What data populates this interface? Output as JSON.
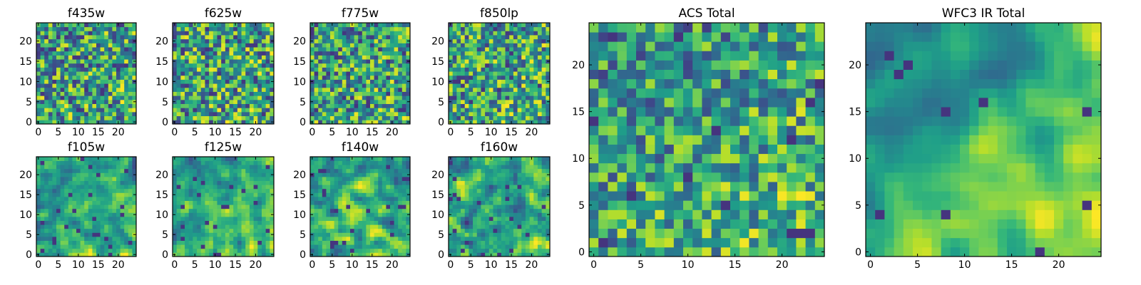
{
  "chart_data": [
    {
      "type": "heatmap",
      "title": "f435w",
      "grid_size": 25,
      "colormap": "viridis",
      "seed": 11,
      "smooth": 0,
      "gradient": 0.05,
      "xticks": [
        0,
        5,
        10,
        15,
        20
      ],
      "yticks": [
        0,
        5,
        10,
        15,
        20
      ],
      "xlim": [
        0,
        24
      ],
      "ylim": [
        0,
        24
      ]
    },
    {
      "type": "heatmap",
      "title": "f625w",
      "grid_size": 25,
      "colormap": "viridis",
      "seed": 23,
      "smooth": 0,
      "gradient": 0.05,
      "xticks": [
        0,
        5,
        10,
        15,
        20
      ],
      "yticks": [
        0,
        5,
        10,
        15,
        20
      ],
      "xlim": [
        0,
        24
      ],
      "ylim": [
        0,
        24
      ]
    },
    {
      "type": "heatmap",
      "title": "f775w",
      "grid_size": 25,
      "colormap": "viridis",
      "seed": 37,
      "smooth": 0,
      "gradient": 0.1,
      "xticks": [
        0,
        5,
        10,
        15,
        20
      ],
      "yticks": [
        0,
        5,
        10,
        15,
        20
      ],
      "xlim": [
        0,
        24
      ],
      "ylim": [
        0,
        24
      ]
    },
    {
      "type": "heatmap",
      "title": "f850lp",
      "grid_size": 25,
      "colormap": "viridis",
      "seed": 41,
      "smooth": 0,
      "gradient": 0.1,
      "xticks": [
        0,
        5,
        10,
        15,
        20
      ],
      "yticks": [
        0,
        5,
        10,
        15,
        20
      ],
      "xlim": [
        0,
        24
      ],
      "ylim": [
        0,
        24
      ]
    },
    {
      "type": "heatmap",
      "title": "f105w",
      "grid_size": 25,
      "colormap": "viridis",
      "seed": 53,
      "smooth": 1,
      "gradient": 0.2,
      "xticks": [
        0,
        5,
        10,
        15,
        20
      ],
      "yticks": [
        0,
        5,
        10,
        15,
        20
      ],
      "xlim": [
        0,
        24
      ],
      "ylim": [
        0,
        24
      ]
    },
    {
      "type": "heatmap",
      "title": "f125w",
      "grid_size": 25,
      "colormap": "viridis",
      "seed": 67,
      "smooth": 1,
      "gradient": 0.3,
      "xticks": [
        0,
        5,
        10,
        15,
        20
      ],
      "yticks": [
        0,
        5,
        10,
        15,
        20
      ],
      "xlim": [
        0,
        24
      ],
      "ylim": [
        0,
        24
      ]
    },
    {
      "type": "heatmap",
      "title": "f140w",
      "grid_size": 25,
      "colormap": "viridis",
      "seed": 71,
      "smooth": 1,
      "gradient": 0.2,
      "xticks": [
        0,
        5,
        10,
        15,
        20
      ],
      "yticks": [
        0,
        5,
        10,
        15,
        20
      ],
      "xlim": [
        0,
        24
      ],
      "ylim": [
        0,
        24
      ]
    },
    {
      "type": "heatmap",
      "title": "f160w",
      "grid_size": 25,
      "colormap": "viridis",
      "seed": 83,
      "smooth": 1,
      "gradient": 0.2,
      "xticks": [
        0,
        5,
        10,
        15,
        20
      ],
      "yticks": [
        0,
        5,
        10,
        15,
        20
      ],
      "xlim": [
        0,
        24
      ],
      "ylim": [
        0,
        24
      ]
    },
    {
      "type": "heatmap",
      "title": "ACS Total",
      "grid_size": 25,
      "colormap": "viridis",
      "seed": 97,
      "smooth": 0,
      "gradient": 0.25,
      "xticks": [
        0,
        5,
        10,
        15,
        20
      ],
      "yticks": [
        0,
        5,
        10,
        15,
        20
      ],
      "xlim": [
        0,
        24
      ],
      "ylim": [
        0,
        24
      ]
    },
    {
      "type": "heatmap",
      "title": "WFC3 IR Total",
      "grid_size": 25,
      "colormap": "viridis",
      "seed": 101,
      "smooth": 2,
      "gradient": 0.5,
      "xticks": [
        0,
        5,
        10,
        15,
        20
      ],
      "yticks": [
        0,
        5,
        10,
        15,
        20
      ],
      "xlim": [
        0,
        24
      ],
      "ylim": [
        0,
        24
      ]
    }
  ]
}
